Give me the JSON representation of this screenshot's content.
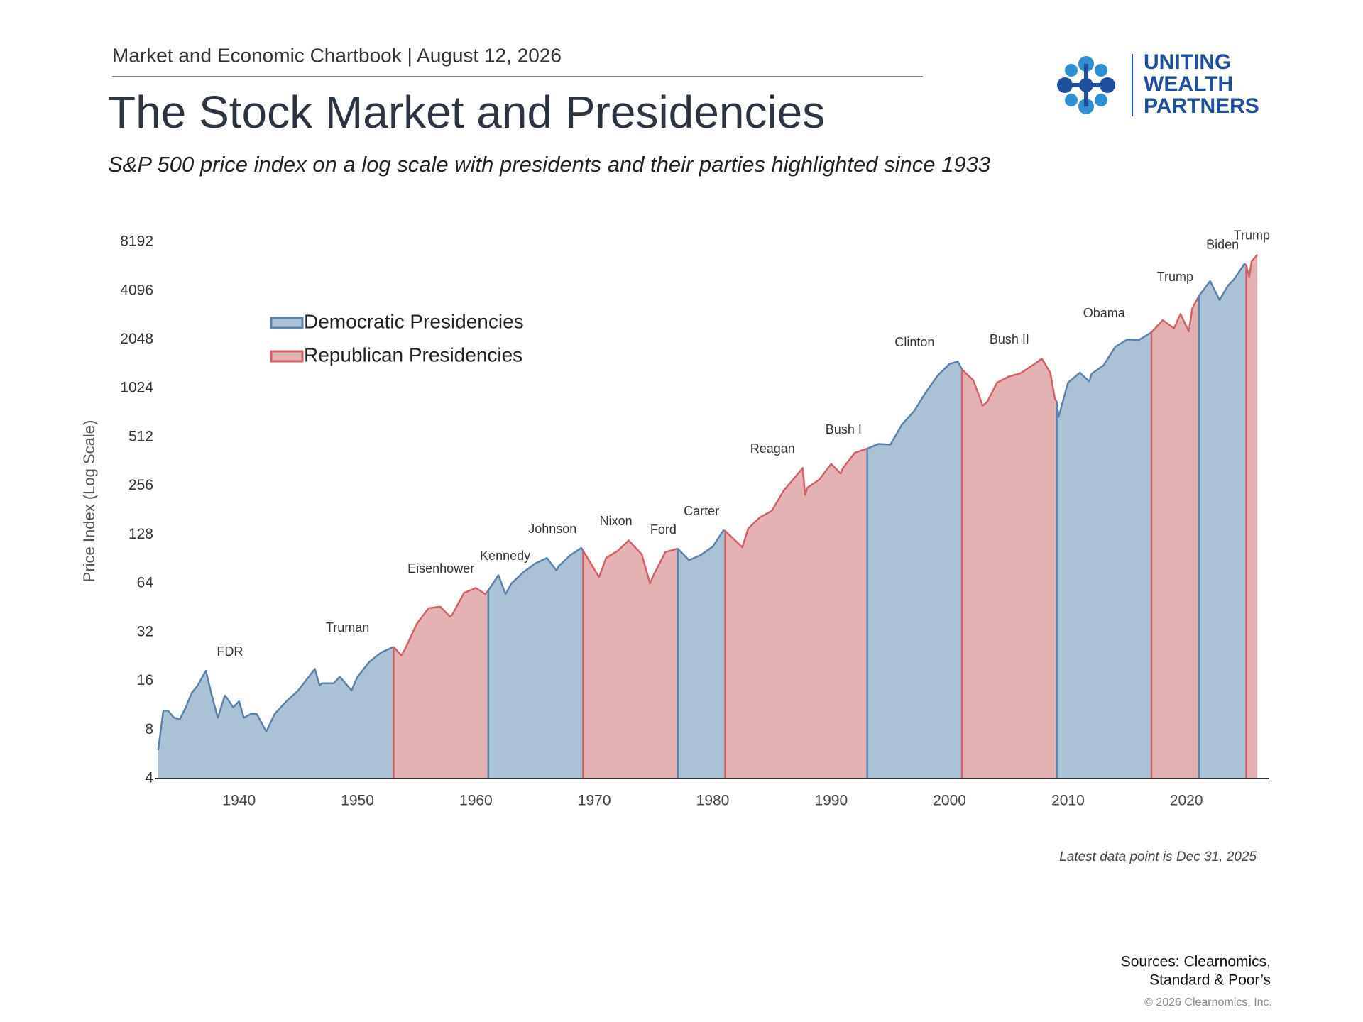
{
  "header": {
    "chartbook": "Market and Economic Chartbook | August 12, 2026",
    "title": "The Stock Market and Presidencies",
    "subtitle": "S&P 500 price index on a log scale with presidents and their parties highlighted since 1933"
  },
  "logo": {
    "lines": [
      "UNITING",
      "WEALTH",
      "PARTNERS"
    ]
  },
  "chart_data": {
    "type": "area",
    "log_scale": true,
    "grid": false,
    "legend": "upper-left",
    "ylabel": "Price Index (Log Scale)",
    "note": "Latest data point is Dec 31, 2025",
    "xlim": [
      1933,
      2027
    ],
    "xticks": [
      1940,
      1950,
      1960,
      1970,
      1980,
      1990,
      2000,
      2010,
      2020
    ],
    "ylim": [
      4,
      8192
    ],
    "yticks": [
      4,
      8,
      16,
      32,
      64,
      128,
      256,
      512,
      1024,
      2048,
      4096,
      8192
    ],
    "series": [
      {
        "name": "Democratic Presidencies",
        "color": "#5a82ab",
        "fill": "#abc2d6"
      },
      {
        "name": "Republican Presidencies",
        "color": "#cf6266",
        "fill": "#e5b2b3"
      }
    ],
    "presidencies": [
      {
        "label": "FDR",
        "start": 1933.17,
        "series": 0
      },
      {
        "label": "Truman",
        "start": 1945.28,
        "series": 0
      },
      {
        "label": "Eisenhower",
        "start": 1953.05,
        "series": 1
      },
      {
        "label": "Kennedy",
        "start": 1961.05,
        "series": 0
      },
      {
        "label": "Johnson",
        "start": 1963.89,
        "series": 0
      },
      {
        "label": "Nixon",
        "start": 1969.05,
        "series": 1
      },
      {
        "label": "Ford",
        "start": 1974.6,
        "series": 1
      },
      {
        "label": "Carter",
        "start": 1977.05,
        "series": 0
      },
      {
        "label": "Reagan",
        "start": 1981.05,
        "series": 1
      },
      {
        "label": "Bush I",
        "start": 1989.05,
        "series": 1
      },
      {
        "label": "Clinton",
        "start": 1993.05,
        "series": 0
      },
      {
        "label": "Bush II",
        "start": 2001.05,
        "series": 1
      },
      {
        "label": "Obama",
        "start": 2009.05,
        "series": 0
      },
      {
        "label": "Trump",
        "start": 2017.05,
        "series": 1
      },
      {
        "label": "Biden",
        "start": 2021.05,
        "series": 0
      },
      {
        "label": "Trump",
        "start": 2025.05,
        "series": 1
      }
    ],
    "x": [
      1933.17,
      1933.6,
      1934,
      1934.5,
      1935,
      1935.5,
      1936,
      1936.5,
      1937,
      1937.2,
      1937.7,
      1938.2,
      1938.8,
      1939,
      1939.5,
      1940,
      1940.4,
      1941,
      1941.5,
      1942.3,
      1943,
      1944,
      1945,
      1946.4,
      1946.8,
      1947,
      1948,
      1948.5,
      1949.5,
      1950,
      1951,
      1952,
      1953.05,
      1953.7,
      1954,
      1955,
      1956,
      1957,
      1957.8,
      1958,
      1959,
      1960,
      1960.8,
      1961.05,
      1961.9,
      1962.5,
      1963,
      1964,
      1965,
      1966,
      1966.8,
      1967,
      1968,
      1968.9,
      1969.05,
      1970.4,
      1971,
      1972,
      1972.9,
      1974,
      1974.7,
      1975,
      1976,
      1977.05,
      1978,
      1979,
      1980,
      1980.9,
      1981.05,
      1982.5,
      1983,
      1984,
      1985,
      1986,
      1987.6,
      1987.8,
      1988,
      1989,
      1990,
      1990.8,
      1991,
      1992,
      1993.05,
      1994,
      1995,
      1996,
      1997,
      1998,
      1999,
      2000,
      2000.7,
      2001.05,
      2002,
      2002.8,
      2003.2,
      2004,
      2005,
      2006,
      2007,
      2007.8,
      2008.5,
      2008.9,
      2009.05,
      2009.2,
      2010,
      2011,
      2011.8,
      2012,
      2013,
      2014,
      2015,
      2016,
      2017.05,
      2018,
      2018.95,
      2019.5,
      2020.2,
      2020.5,
      2021.05,
      2022,
      2022.8,
      2023.5,
      2024,
      2024.9,
      2025.05,
      2025.3,
      2025.5,
      2025.99
    ],
    "values": [
      6,
      10.5,
      10.5,
      9.5,
      9.3,
      11,
      13.5,
      15,
      17.5,
      18.5,
      13,
      9.5,
      13,
      12.5,
      11,
      12,
      9.5,
      10,
      10,
      7.8,
      10,
      12,
      14,
      19,
      15,
      15.5,
      15.5,
      17,
      14,
      17,
      21,
      24,
      26,
      23,
      25,
      36,
      45,
      46,
      40,
      41,
      56,
      60,
      55,
      58,
      72,
      55,
      64,
      75,
      85,
      92,
      77,
      82,
      96,
      106,
      102,
      70,
      92,
      102,
      118,
      97,
      64,
      72,
      100,
      105,
      89,
      96,
      108,
      136,
      135,
      107,
      140,
      164,
      180,
      240,
      330,
      225,
      250,
      280,
      350,
      305,
      330,
      410,
      435,
      465,
      460,
      615,
      740,
      970,
      1230,
      1450,
      1500,
      1340,
      1150,
      800,
      850,
      1110,
      1210,
      1270,
      1420,
      1560,
      1280,
      880,
      850,
      680,
      1110,
      1280,
      1130,
      1260,
      1420,
      1850,
      2050,
      2040,
      2270,
      2700,
      2400,
      2950,
      2300,
      3200,
      3800,
      4700,
      3600,
      4400,
      4800,
      6000,
      5900,
      4980,
      6200,
      6845
    ]
  },
  "footer": {
    "sources": [
      "Sources: Clearnomics,",
      "Standard & Poor’s"
    ],
    "copyright": "© 2026 Clearnomics, Inc."
  }
}
